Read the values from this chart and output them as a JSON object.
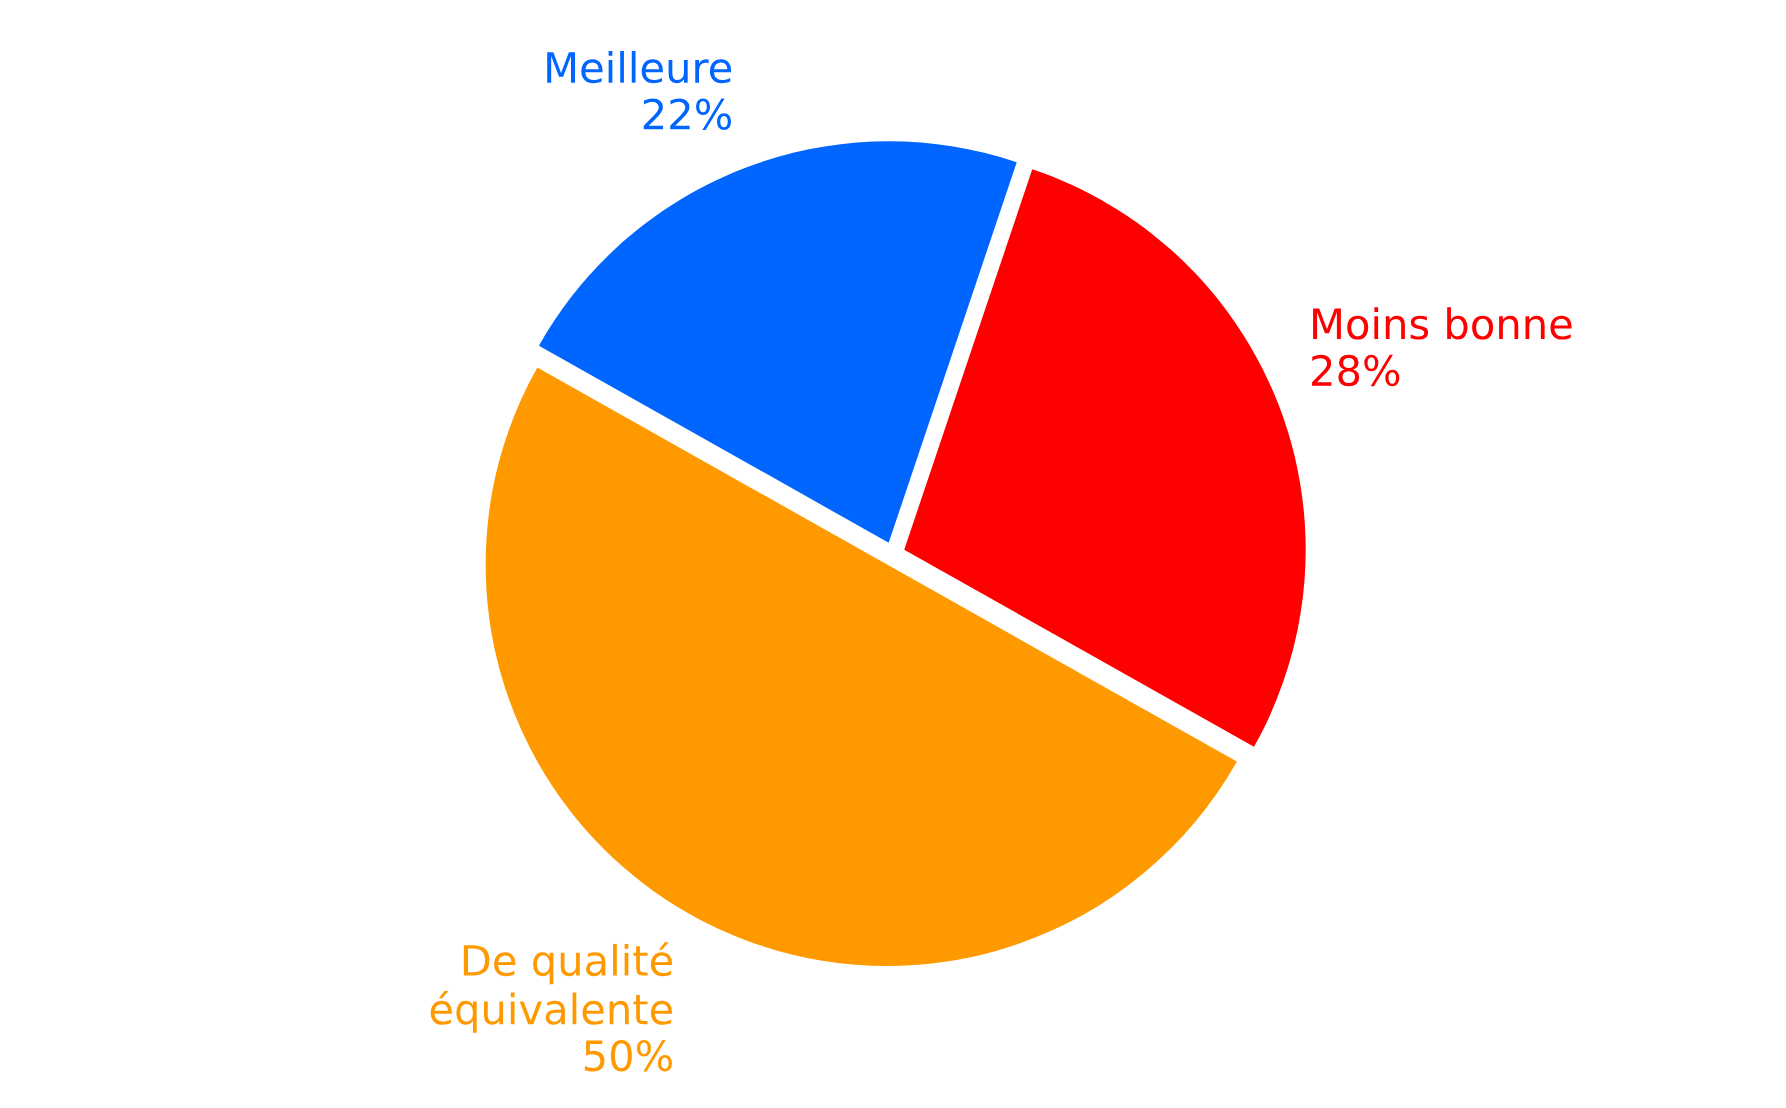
{
  "chart_data": {
    "type": "pie",
    "categories": [
      "Moins bonne",
      "De qualité\néquivalente",
      "Meilleure"
    ],
    "values": [
      28,
      50,
      22
    ],
    "colors": [
      "#ff0000",
      "#ff9900",
      "#0066ff"
    ],
    "value_labels": [
      "28%",
      "50%",
      "22%"
    ],
    "legend": false
  }
}
